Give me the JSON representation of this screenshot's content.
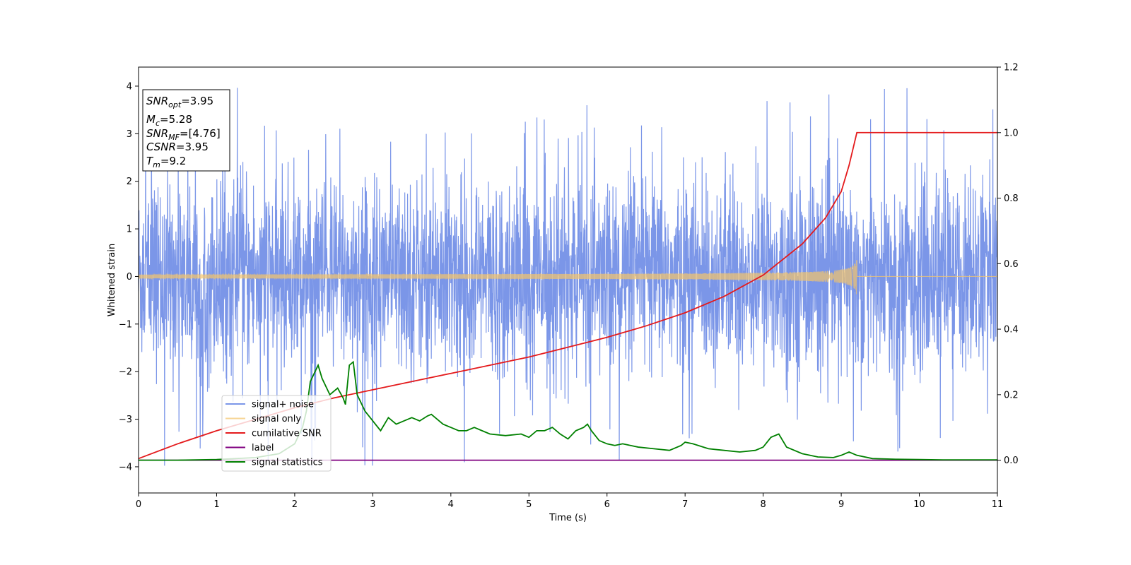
{
  "chart_data": {
    "type": "line",
    "xlabel": "Time (s)",
    "ylabel": "Whitened strain",
    "xlim": [
      0,
      11
    ],
    "ylim": [
      -4.55,
      4.4
    ],
    "y2lim": [
      -0.1,
      1.2
    ],
    "x_ticks": [
      "0",
      "1",
      "2",
      "3",
      "4",
      "5",
      "6",
      "7",
      "8",
      "9",
      "10",
      "11"
    ],
    "y_ticks": [
      "−4",
      "−3",
      "−2",
      "−1",
      "0",
      "1",
      "2",
      "3",
      "4"
    ],
    "y2_ticks": [
      "0.0",
      "0.2",
      "0.4",
      "0.6",
      "0.8",
      "1.0",
      "1.2"
    ],
    "legend_position": "lower-left",
    "grid": false,
    "annotation": [
      {
        "base": "SNR",
        "sub": "opt",
        "rest": "=3.95"
      },
      {
        "base": "M",
        "sub": "c",
        "rest": "=5.28"
      },
      {
        "base": "SNR",
        "sub": "MF",
        "rest": "=[4.76]"
      },
      {
        "base": "CSNR",
        "sub": "",
        "rest": "=3.95"
      },
      {
        "base": "T",
        "sub": "m",
        "rest": "=9.2"
      }
    ],
    "series": [
      {
        "name": "signal+ noise",
        "color": "#7b96e8",
        "axis": "left",
        "kind": "noise",
        "description": "whitened strain noise, roughly ±2 with spikes reaching about ±4"
      },
      {
        "name": "signal only",
        "color": "#f5c56b",
        "axis": "left",
        "kind": "chirp",
        "merger_time": 9.2,
        "peak_amplitude": 0.45
      },
      {
        "name": "cumilative SNR",
        "color": "#e41a1c",
        "axis": "right",
        "kind": "line",
        "x": [
          0,
          0.5,
          1,
          1.5,
          2,
          2.5,
          3,
          3.5,
          4,
          4.5,
          5,
          5.5,
          6,
          6.5,
          7,
          7.5,
          8,
          8.5,
          8.8,
          9.0,
          9.1,
          9.2,
          11
        ],
        "y": [
          0.005,
          0.05,
          0.09,
          0.125,
          0.16,
          0.19,
          0.215,
          0.24,
          0.265,
          0.29,
          0.315,
          0.345,
          0.375,
          0.41,
          0.45,
          0.5,
          0.565,
          0.66,
          0.74,
          0.82,
          0.9,
          1.0,
          1.0
        ]
      },
      {
        "name": "label",
        "color": "#800080",
        "axis": "right",
        "kind": "line",
        "x": [
          0,
          11
        ],
        "y": [
          0,
          0
        ]
      },
      {
        "name": "signal statistics",
        "color": "#008000",
        "axis": "right",
        "kind": "line",
        "x": [
          0,
          0.5,
          1.0,
          1.5,
          1.8,
          2.0,
          2.1,
          2.15,
          2.2,
          2.3,
          2.35,
          2.45,
          2.55,
          2.62,
          2.65,
          2.7,
          2.75,
          2.8,
          2.9,
          3.0,
          3.1,
          3.2,
          3.3,
          3.4,
          3.5,
          3.6,
          3.7,
          3.75,
          3.8,
          3.9,
          4.0,
          4.1,
          4.2,
          4.3,
          4.4,
          4.5,
          4.7,
          4.9,
          5.0,
          5.1,
          5.2,
          5.3,
          5.4,
          5.5,
          5.6,
          5.7,
          5.75,
          5.8,
          5.9,
          6.0,
          6.1,
          6.2,
          6.4,
          6.6,
          6.8,
          6.95,
          7.0,
          7.1,
          7.3,
          7.5,
          7.7,
          7.9,
          8.0,
          8.1,
          8.2,
          8.3,
          8.5,
          8.7,
          8.9,
          9.0,
          9.1,
          9.2,
          9.4,
          9.7,
          10.0,
          10.3,
          10.6,
          11
        ],
        "y": [
          0.0,
          0.0,
          0.002,
          0.008,
          0.02,
          0.05,
          0.1,
          0.15,
          0.24,
          0.29,
          0.25,
          0.2,
          0.22,
          0.19,
          0.17,
          0.29,
          0.3,
          0.2,
          0.15,
          0.12,
          0.09,
          0.13,
          0.11,
          0.12,
          0.13,
          0.12,
          0.135,
          0.14,
          0.13,
          0.11,
          0.1,
          0.09,
          0.09,
          0.1,
          0.09,
          0.08,
          0.075,
          0.08,
          0.07,
          0.09,
          0.09,
          0.1,
          0.08,
          0.065,
          0.09,
          0.1,
          0.11,
          0.09,
          0.06,
          0.05,
          0.045,
          0.05,
          0.04,
          0.035,
          0.03,
          0.045,
          0.055,
          0.05,
          0.035,
          0.03,
          0.025,
          0.03,
          0.04,
          0.07,
          0.08,
          0.04,
          0.02,
          0.01,
          0.008,
          0.015,
          0.025,
          0.015,
          0.005,
          0.003,
          0.002,
          0.001,
          0.001,
          0.001
        ]
      }
    ]
  }
}
